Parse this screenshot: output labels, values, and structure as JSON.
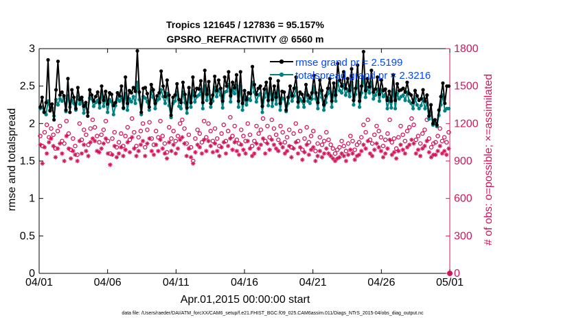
{
  "chart_data": {
    "type": "line",
    "title_line1": "Tropics 121645 / 127836 = 95.157%",
    "title_line2": "GPSRO_REFRACTIVITY @ 6560 m",
    "xlabel": "Apr.01,2015 00:00:00 start",
    "ylabel_left": "rmse and totalspread",
    "ylabel_right": "# of obs: o=possible; ×=assimilated",
    "footer": "data file: /Users/raeder/DAI/ATM_forcXX/CAM6_setup/f.e21.FHIST_BGC.f09_025.CAM6assim.011/Diags_NTrS_2015-04/obs_diag_output.nc",
    "x_ticks": [
      "04/01",
      "04/06",
      "04/11",
      "04/16",
      "04/21",
      "04/26",
      "05/01"
    ],
    "xlim": [
      0,
      30
    ],
    "y_left_ticks": [
      "0",
      "0.5",
      "1",
      "1.5",
      "2",
      "2.5",
      "3"
    ],
    "ylim_left": [
      0,
      3
    ],
    "y_right_ticks": [
      "0",
      "300",
      "600",
      "900",
      "1200",
      "1500",
      "1800"
    ],
    "ylim_right": [
      0,
      1800
    ],
    "colors": {
      "rmse": "#000000",
      "spread": "#008080",
      "obs": "#d4145a",
      "axis": "#000000",
      "legend_text": "#0047ff"
    },
    "legend": [
      {
        "label": "rmse grand pr = 2.5199",
        "series": "rmse"
      },
      {
        "label": "totalspread grand pr = 2.3216",
        "series": "spread"
      }
    ],
    "series": [
      {
        "name": "rmse",
        "values": [
          2.22,
          2.35,
          2.15,
          2.28,
          2.85,
          2.17,
          2.26,
          2.05,
          2.45,
          2.83,
          2.38,
          2.42,
          2.37,
          2.18,
          2.6,
          2.15,
          2.45,
          2.35,
          2.2,
          2.48,
          2.32,
          2.35,
          2.23,
          2.28,
          2.1,
          2.45,
          2.38,
          2.3,
          2.36,
          2.42,
          2.28,
          2.5,
          2.31,
          2.43,
          2.26,
          2.41,
          2.39,
          2.24,
          2.28,
          2.41,
          2.37,
          2.5,
          2.21,
          2.62,
          2.27,
          2.44,
          2.41,
          2.48,
          2.43,
          2.97,
          2.42,
          2.15,
          2.47,
          2.48,
          2.4,
          2.22,
          2.52,
          2.45,
          2.27,
          2.37,
          2.41,
          2.7,
          2.5,
          2.36,
          2.58,
          2.38,
          2.11,
          2.35,
          2.38,
          2.53,
          2.32,
          2.28,
          2.55,
          2.39,
          2.21,
          2.48,
          2.28,
          2.62,
          2.37,
          2.47,
          2.46,
          2.57,
          2.28,
          2.71,
          2.39,
          2.56,
          2.27,
          2.38,
          2.63,
          2.44,
          2.58,
          2.47,
          2.3,
          2.62,
          2.5,
          2.69,
          2.37,
          2.55,
          2.48,
          2.65,
          2.3,
          2.69,
          2.27,
          2.44,
          2.32,
          2.41,
          2.4,
          2.76,
          2.52,
          2.39,
          2.47,
          2.5,
          2.23,
          2.46,
          2.55,
          2.31,
          2.6,
          2.32,
          2.5,
          2.35,
          2.57,
          2.27,
          2.43,
          2.42,
          2.18,
          2.35,
          2.5,
          2.37,
          2.47,
          2.62,
          2.29,
          2.42,
          2.39,
          2.3,
          2.52,
          2.38,
          2.34,
          2.41,
          2.64,
          2.41,
          2.28,
          2.58,
          2.44,
          2.25,
          2.37,
          2.47,
          2.6,
          2.3,
          2.54,
          2.38,
          2.8,
          2.58,
          2.5,
          2.69,
          2.47,
          2.6,
          2.44,
          2.73,
          2.31,
          2.47,
          2.78,
          2.3,
          2.5,
          2.96,
          2.44,
          2.6,
          2.49,
          2.71,
          2.42,
          2.46,
          2.62,
          2.39,
          2.58,
          2.44,
          2.46,
          2.31,
          2.43,
          2.3,
          2.65,
          2.31,
          2.53,
          2.44,
          2.45,
          2.47,
          2.42,
          2.55,
          2.4,
          2.38,
          2.28,
          2.44,
          2.37,
          2.31,
          2.33,
          2.45,
          2.3,
          2.38,
          2.1,
          2.25,
          2.0,
          2.05,
          1.98,
          2.18,
          2.36,
          2.54,
          2.27,
          2.5,
          2.5
        ]
      },
      {
        "name": "totalspread",
        "values": [
          2.2,
          2.22,
          2.16,
          2.12,
          2.3,
          2.18,
          2.21,
          2.1,
          2.32,
          2.25,
          2.33,
          2.3,
          2.34,
          2.16,
          2.37,
          2.22,
          2.31,
          2.27,
          2.18,
          2.36,
          2.26,
          2.31,
          2.14,
          2.25,
          2.15,
          2.34,
          2.33,
          2.23,
          2.28,
          2.31,
          2.21,
          2.4,
          2.23,
          2.34,
          2.15,
          2.32,
          2.29,
          2.12,
          2.24,
          2.33,
          2.3,
          2.35,
          2.2,
          2.4,
          2.18,
          2.33,
          2.29,
          2.36,
          2.27,
          2.55,
          2.32,
          2.12,
          2.36,
          2.34,
          2.29,
          2.18,
          2.42,
          2.35,
          2.2,
          2.31,
          2.33,
          2.45,
          2.36,
          2.27,
          2.4,
          2.24,
          2.08,
          2.27,
          2.3,
          2.42,
          2.23,
          2.2,
          2.42,
          2.28,
          2.14,
          2.38,
          2.22,
          2.44,
          2.29,
          2.36,
          2.38,
          2.46,
          2.2,
          2.5,
          2.31,
          2.44,
          2.22,
          2.3,
          2.48,
          2.36,
          2.45,
          2.38,
          2.21,
          2.42,
          2.43,
          2.52,
          2.29,
          2.45,
          2.4,
          2.51,
          2.22,
          2.5,
          2.18,
          2.35,
          2.25,
          2.33,
          2.31,
          2.55,
          2.42,
          2.29,
          2.38,
          2.4,
          2.15,
          2.35,
          2.45,
          2.24,
          2.47,
          2.23,
          2.4,
          2.26,
          2.44,
          2.18,
          2.34,
          2.33,
          2.16,
          2.27,
          2.41,
          2.3,
          2.37,
          2.48,
          2.22,
          2.33,
          2.3,
          2.22,
          2.42,
          2.3,
          2.27,
          2.33,
          2.49,
          2.33,
          2.2,
          2.45,
          2.35,
          2.18,
          2.28,
          2.4,
          2.47,
          2.22,
          2.42,
          2.3,
          2.56,
          2.44,
          2.41,
          2.52,
          2.38,
          2.45,
          2.36,
          2.55,
          2.25,
          2.39,
          2.56,
          2.22,
          2.41,
          2.62,
          2.35,
          2.48,
          2.41,
          2.55,
          2.33,
          2.38,
          2.46,
          2.3,
          2.45,
          2.36,
          2.39,
          2.2,
          2.33,
          2.21,
          2.45,
          2.2,
          2.4,
          2.33,
          2.36,
          2.38,
          2.31,
          2.42,
          2.3,
          2.27,
          2.2,
          2.33,
          2.25,
          2.2,
          2.24,
          2.33,
          2.2,
          2.27,
          2.06,
          2.15,
          1.98,
          2.0,
          1.96,
          2.11,
          2.25,
          2.38,
          2.17,
          2.2,
          2.2
        ]
      },
      {
        "name": "obs_possible",
        "values": [
          1100,
          1020,
          1130,
          1190,
          1090,
          1160,
          1110,
          1000,
          1140,
          1180,
          1060,
          1040,
          1220,
          1120,
          990,
          1080,
          1020,
          950,
          1200,
          1070,
          1150,
          1110,
          1030,
          1160,
          1230,
          1170,
          1100,
          1050,
          1110,
          1150,
          1220,
          1060,
          960,
          1080,
          1130,
          1010,
          1050,
          1120,
          1020,
          1100,
          1170,
          1070,
          1240,
          1130,
          1020,
          1090,
          1140,
          1200,
          1010,
          1150,
          1210,
          1080,
          1030,
          1140,
          1090,
          1220,
          1100,
          1040,
          970,
          1170,
          1080,
          1140,
          1060,
          1100,
          1200,
          1230,
          1160,
          1040,
          1110,
          1010,
          900,
          1080,
          1150,
          1120,
          1050,
          1220,
          1090,
          1200,
          1140,
          1060,
          1160,
          1080,
          1020,
          1120,
          1190,
          1060,
          1140,
          1250,
          1100,
          1180,
          1070,
          1040,
          1150,
          1100,
          1060,
          1200,
          1110,
          1020,
          1060,
          1180,
          1120,
          1150,
          1240,
          1060,
          1180,
          1090,
          1230,
          1160,
          1110,
          1070,
          1180,
          1130,
          1050,
          1090,
          1150,
          1010,
          1120,
          1200,
          1060,
          1140,
          990,
          1080,
          1170,
          1050,
          1100,
          1140,
          980,
          1040,
          1090,
          1030,
          1060,
          1130,
          1070,
          1030,
          1000,
          960,
          990,
          1010,
          1060,
          1020,
          980,
          1040,
          1100,
          1060,
          990,
          1030,
          1050,
          1090,
          1190,
          1130,
          1230,
          1070,
          1040,
          1110,
          1180,
          1140,
          1090,
          1020,
          1070,
          1120,
          1230,
          1050,
          1080,
          1000,
          1090,
          1180,
          1110,
          1060,
          1140,
          1170,
          1240,
          1190,
          1070,
          1100,
          1040,
          1120,
          1150,
          1230,
          1080,
          1010,
          1040,
          1050,
          1100,
          1160,
          1060,
          1090,
          1050,
          1130
        ]
      },
      {
        "name": "obs_assimilated",
        "values": [
          1030,
          880,
          1010,
          960,
          1050,
          1080,
          1020,
          930,
          1000,
          1040,
          960,
          900,
          1100,
          1000,
          920,
          980,
          950,
          900,
          1060,
          960,
          1030,
          980,
          940,
          1050,
          1080,
          1060,
          980,
          970,
          1000,
          1040,
          1080,
          960,
          870,
          950,
          1020,
          930,
          960,
          1010,
          940,
          990,
          1050,
          970,
          1090,
          1000,
          940,
          980,
          1030,
          1060,
          940,
          1040,
          1080,
          980,
          950,
          1030,
          980,
          1070,
          1000,
          960,
          920,
          1050,
          980,
          1030,
          960,
          1000,
          1070,
          1090,
          1040,
          940,
          1000,
          930,
          880,
          970,
          1030,
          1010,
          960,
          1070,
          980,
          1060,
          1020,
          970,
          1040,
          980,
          940,
          1010,
          1050,
          960,
          1020,
          1080,
          990,
          1050,
          980,
          950,
          1030,
          990,
          960,
          1060,
          1000,
          940,
          960,
          1040,
          1000,
          1030,
          1080,
          960,
          1040,
          990,
          1070,
          1030,
          1000,
          980,
          1040,
          1010,
          960,
          980,
          1020,
          930,
          1000,
          1050,
          960,
          1010,
          910,
          970,
          1030,
          950,
          990,
          1010,
          900,
          940,
          980,
          930,
          960,
          1000,
          960,
          940,
          920,
          900,
          920,
          930,
          960,
          940,
          900,
          950,
          990,
          960,
          910,
          940,
          950,
          980,
          1030,
          1000,
          1060,
          960,
          940,
          990,
          1040,
          1010,
          980,
          930,
          960,
          1000,
          1070,
          950,
          970,
          920,
          980,
          1030,
          990,
          960,
          1010,
          1030,
          1070,
          1040,
          960,
          990,
          940,
          1000,
          1020,
          1060,
          970,
          930,
          950,
          950,
          980,
          1020,
          960,
          980,
          950,
          1000
        ]
      }
    ]
  }
}
